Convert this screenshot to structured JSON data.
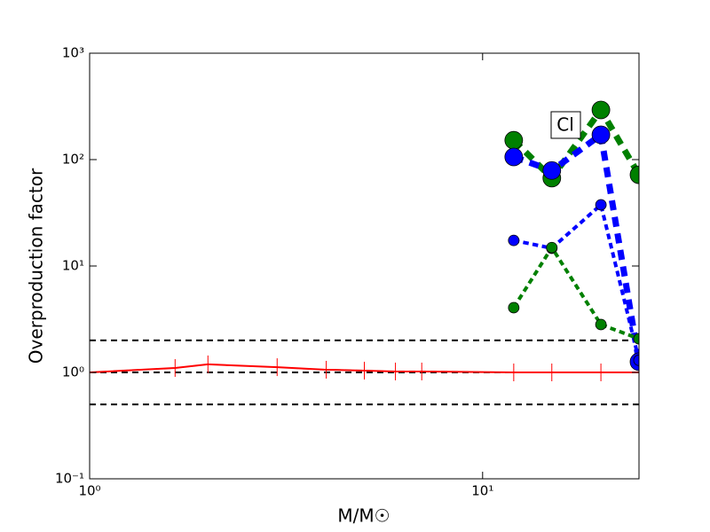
{
  "chart_data": {
    "type": "line",
    "xlabel": "M/M☉",
    "ylabel": "Overproduction factor",
    "annotation": "Cl",
    "log_x": true,
    "log_y": true,
    "xlim": [
      1,
      25
    ],
    "ylim": [
      0.1,
      1000
    ],
    "xticks": [
      {
        "value": 1,
        "label": "10⁰"
      },
      {
        "value": 10,
        "label": "10¹"
      }
    ],
    "yticks": [
      {
        "value": 0.1,
        "label": "10⁻¹"
      },
      {
        "value": 1,
        "label": "10⁰"
      },
      {
        "value": 10,
        "label": "10¹"
      },
      {
        "value": 100,
        "label": "10²"
      },
      {
        "value": 1000,
        "label": "10³"
      }
    ],
    "hlines": [
      0.5,
      1,
      2
    ],
    "hline_color": "#000000",
    "series": [
      {
        "color": "#ff0000",
        "marker": "tick",
        "dashed": false,
        "line_width": 2,
        "marker_size": 10,
        "x": [
          1,
          1.65,
          2,
          3,
          4,
          5,
          6,
          7,
          12,
          15,
          20,
          25
        ],
        "values": [
          1.0,
          1.1,
          1.19,
          1.12,
          1.06,
          1.04,
          1.02,
          1.02,
          1.0,
          1.0,
          1.0,
          1.0
        ]
      },
      {
        "color": "#008000",
        "marker": "circle",
        "dashed": true,
        "line_width": 7,
        "marker_size": 10,
        "x": [
          12,
          15,
          20,
          25
        ],
        "values": [
          152,
          67,
          293,
          72
        ]
      },
      {
        "color": "#0000ff",
        "marker": "circle",
        "dashed": true,
        "line_width": 7,
        "marker_size": 10,
        "x": [
          12,
          15,
          20,
          25
        ],
        "values": [
          106,
          79,
          171,
          1.26
        ]
      },
      {
        "color": "#0000ff",
        "marker": "circle",
        "dashed": true,
        "line_width": 4,
        "marker_size": 6,
        "x": [
          12,
          15,
          20,
          25
        ],
        "values": [
          17.4,
          14.7,
          37.6,
          1.3
        ]
      },
      {
        "color": "#008000",
        "marker": "circle",
        "dashed": true,
        "line_width": 4,
        "marker_size": 6,
        "x": [
          12,
          15,
          20,
          25
        ],
        "values": [
          4.06,
          14.9,
          2.82,
          2.07
        ]
      }
    ]
  }
}
